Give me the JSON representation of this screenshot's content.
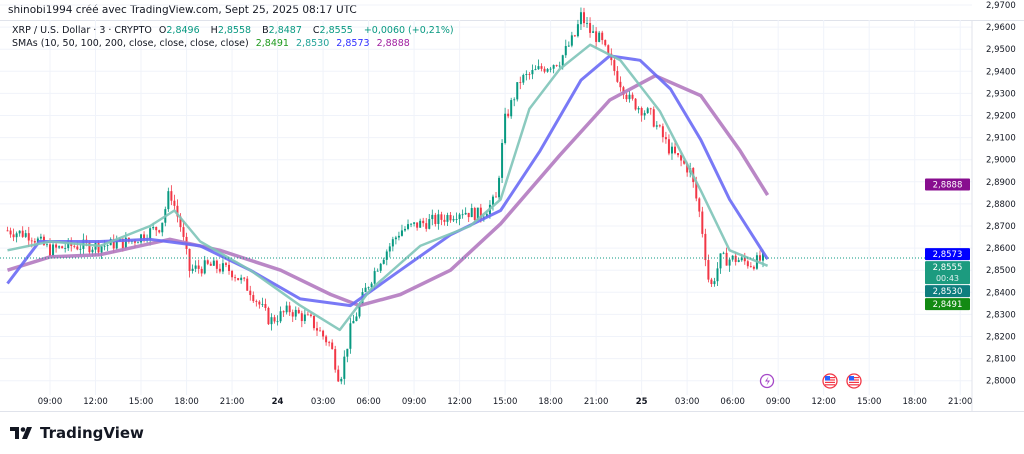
{
  "header": {
    "credit": "shinobi1994 créé avec TradingView.com, Sept 25, 2025 08:17 UTC"
  },
  "legend": {
    "symbol": "XRP / U.S. Dollar · 3 · CRYPTO",
    "o_label": "O",
    "o": "2,8496",
    "h_label": "H",
    "h": "2,8558",
    "b_label": "B",
    "b": "2,8487",
    "c_label": "C",
    "c": "2,8555",
    "change": "+0,0060 (+0,21%)",
    "sma_label": "SMAs (10, 50, 100, 200, close, close, close, close)",
    "sma10": "2,8491",
    "sma50": "2,8530",
    "sma100": "2,8573",
    "sma200": "2,8888"
  },
  "colors": {
    "up": "#089981",
    "down": "#f23645",
    "sma10": "#089981",
    "sma50": "#7ec4b8",
    "sma100": "#6a6af5",
    "sma200": "#b37ac0",
    "grid": "#f0f3fa"
  },
  "chart_data": {
    "type": "line",
    "title": "XRP / U.S. Dollar · 3 · CRYPTO",
    "xlabel": "",
    "ylabel": "",
    "x_unit": "hours since Sept 23 06:00 UTC",
    "ylim": [
      2.7955,
      2.9735
    ],
    "y_ticks": [
      "2,8000",
      "2,8100",
      "2,8200",
      "2,8300",
      "2,8400",
      "2,8500",
      "2,8600",
      "2,8700",
      "2,8800",
      "2,8900",
      "2,9000",
      "2,9100",
      "2,9200",
      "2,9300",
      "2,9400",
      "2,9500",
      "2,9600",
      "2,9700"
    ],
    "x_ticks": [
      {
        "h": 3,
        "label": "09:00"
      },
      {
        "h": 6,
        "label": "12:00"
      },
      {
        "h": 9,
        "label": "15:00"
      },
      {
        "h": 12,
        "label": "18:00"
      },
      {
        "h": 15,
        "label": "21:00"
      },
      {
        "h": 18,
        "label": "24"
      },
      {
        "h": 21,
        "label": "03:00"
      },
      {
        "h": 24,
        "label": "06:00"
      },
      {
        "h": 27,
        "label": "09:00"
      },
      {
        "h": 30,
        "label": "12:00"
      },
      {
        "h": 33,
        "label": "15:00"
      },
      {
        "h": 36,
        "label": "18:00"
      },
      {
        "h": 39,
        "label": "21:00"
      },
      {
        "h": 42,
        "label": "25"
      },
      {
        "h": 45,
        "label": "03:00"
      },
      {
        "h": 48,
        "label": "06:00"
      },
      {
        "h": 51,
        "label": "09:00"
      },
      {
        "h": 54,
        "label": "12:00"
      },
      {
        "h": 57,
        "label": "15:00"
      },
      {
        "h": 60,
        "label": "18:00"
      },
      {
        "h": 63,
        "label": "21:00"
      }
    ],
    "price": [
      [
        0.2,
        2.868
      ],
      [
        1.7,
        2.866
      ],
      [
        3.0,
        2.859
      ],
      [
        4.3,
        2.861
      ],
      [
        6.3,
        2.861
      ],
      [
        8.3,
        2.863
      ],
      [
        10.3,
        2.87
      ],
      [
        10.9,
        2.886
      ],
      [
        11.6,
        2.87
      ],
      [
        12.2,
        2.85
      ],
      [
        13.5,
        2.852
      ],
      [
        14.9,
        2.85
      ],
      [
        16.2,
        2.841
      ],
      [
        17.5,
        2.827
      ],
      [
        18.8,
        2.832
      ],
      [
        20.2,
        2.827
      ],
      [
        21.5,
        2.816
      ],
      [
        22.1,
        2.8
      ],
      [
        22.8,
        2.823
      ],
      [
        23.8,
        2.841
      ],
      [
        24.8,
        2.855
      ],
      [
        26.1,
        2.868
      ],
      [
        27.4,
        2.871
      ],
      [
        28.7,
        2.873
      ],
      [
        30.1,
        2.877
      ],
      [
        31.4,
        2.875
      ],
      [
        32.4,
        2.882
      ],
      [
        33.0,
        2.918
      ],
      [
        34.0,
        2.936
      ],
      [
        35.3,
        2.941
      ],
      [
        36.6,
        2.945
      ],
      [
        37.6,
        2.956
      ],
      [
        38.0,
        2.965
      ],
      [
        38.6,
        2.958
      ],
      [
        39.3,
        2.954
      ],
      [
        40.0,
        2.943
      ],
      [
        41.2,
        2.927
      ],
      [
        42.6,
        2.92
      ],
      [
        43.9,
        2.904
      ],
      [
        45.2,
        2.895
      ],
      [
        45.9,
        2.873
      ],
      [
        46.5,
        2.841
      ],
      [
        47.2,
        2.855
      ],
      [
        48.2,
        2.855
      ],
      [
        49.2,
        2.853
      ],
      [
        50.2,
        2.8555
      ]
    ],
    "series": [
      {
        "name": "SMA 50",
        "key": "sma50",
        "points": [
          [
            0.2,
            2.859
          ],
          [
            3,
            2.863
          ],
          [
            6.3,
            2.861
          ],
          [
            9.6,
            2.87
          ],
          [
            11.2,
            2.877
          ],
          [
            12.9,
            2.863
          ],
          [
            16.2,
            2.85
          ],
          [
            19.5,
            2.834
          ],
          [
            22.1,
            2.823
          ],
          [
            24.1,
            2.841
          ],
          [
            27.4,
            2.861
          ],
          [
            30.7,
            2.87
          ],
          [
            32.7,
            2.882
          ],
          [
            34.6,
            2.923
          ],
          [
            36.6,
            2.941
          ],
          [
            38.6,
            2.952
          ],
          [
            40.6,
            2.945
          ],
          [
            43.2,
            2.922
          ],
          [
            45.9,
            2.886
          ],
          [
            47.8,
            2.859
          ],
          [
            50.3,
            2.852
          ]
        ]
      },
      {
        "name": "SMA 100",
        "key": "sma100",
        "points": [
          [
            0.2,
            2.844
          ],
          [
            2.3,
            2.863
          ],
          [
            6.3,
            2.863
          ],
          [
            9.6,
            2.864
          ],
          [
            12.9,
            2.861
          ],
          [
            16.2,
            2.85
          ],
          [
            19.5,
            2.837
          ],
          [
            22.8,
            2.834
          ],
          [
            26.1,
            2.85
          ],
          [
            29.4,
            2.866
          ],
          [
            32.7,
            2.877
          ],
          [
            35.3,
            2.904
          ],
          [
            38.0,
            2.936
          ],
          [
            39.9,
            2.947
          ],
          [
            41.9,
            2.945
          ],
          [
            43.9,
            2.932
          ],
          [
            45.9,
            2.909
          ],
          [
            47.8,
            2.882
          ],
          [
            50.3,
            2.855
          ]
        ]
      },
      {
        "name": "SMA 200",
        "key": "sma200",
        "points": [
          [
            0.2,
            2.85
          ],
          [
            3,
            2.856
          ],
          [
            6.3,
            2.857
          ],
          [
            10.9,
            2.864
          ],
          [
            14.2,
            2.859
          ],
          [
            18.2,
            2.85
          ],
          [
            21.5,
            2.839
          ],
          [
            23.4,
            2.834
          ],
          [
            26.1,
            2.839
          ],
          [
            29.4,
            2.85
          ],
          [
            32.7,
            2.871
          ],
          [
            36.6,
            2.902
          ],
          [
            39.9,
            2.927
          ],
          [
            42.9,
            2.938
          ],
          [
            45.9,
            2.929
          ],
          [
            48.5,
            2.904
          ],
          [
            50.3,
            2.884
          ]
        ]
      }
    ],
    "last_price": 2.8555,
    "countdown": "00:43",
    "badges": [
      {
        "key": "sma200",
        "value": "2,8888"
      },
      {
        "key": "sma100",
        "value": "2,8573"
      },
      {
        "key": "price",
        "value": "2,8555"
      },
      {
        "key": "sma50",
        "value": "2,8530"
      },
      {
        "key": "sma10",
        "value": "2,8491"
      }
    ]
  },
  "events": {
    "icons": [
      "lightning-event-icon",
      "us-flag-icon",
      "us-flag-icon"
    ]
  },
  "logo": {
    "text": "TradingView"
  }
}
